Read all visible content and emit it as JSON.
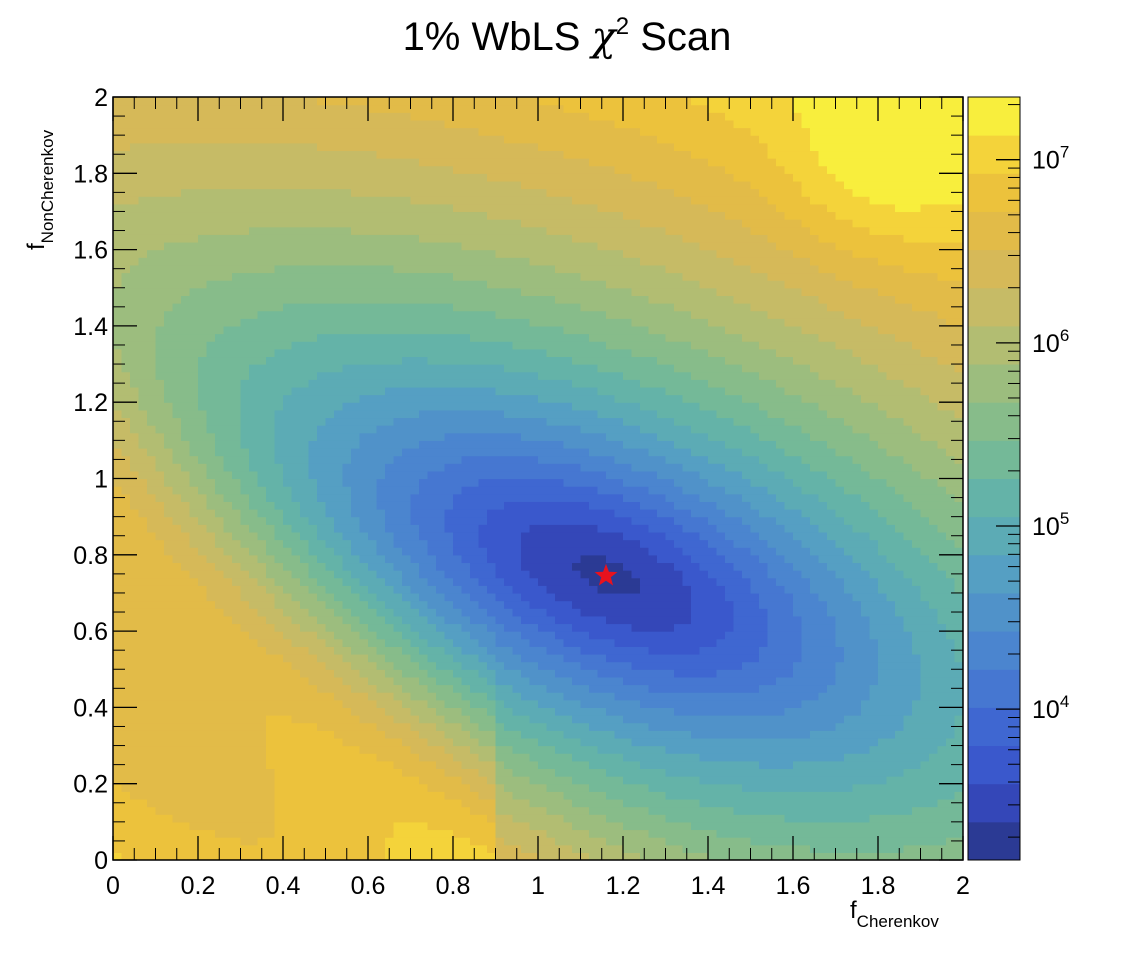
{
  "chart_data": {
    "type": "heatmap",
    "title": {
      "main": "1% WbLS ",
      "symbol": "χ",
      "sup": "2",
      "suffix": " Scan"
    },
    "xlabel": {
      "main": "f",
      "sub": "Cherenkov"
    },
    "ylabel": {
      "main": "f",
      "sub": "NonCherenkov"
    },
    "xlim": [
      0,
      2
    ],
    "ylim": [
      0,
      2
    ],
    "x_ticks": [
      "0",
      "0.2",
      "0.4",
      "0.6",
      "0.8",
      "1",
      "1.2",
      "1.4",
      "1.6",
      "1.8",
      "2"
    ],
    "y_ticks": [
      "0",
      "0.2",
      "0.4",
      "0.6",
      "0.8",
      "1",
      "1.2",
      "1.4",
      "1.6",
      "1.8",
      "2"
    ],
    "z_scale": "log",
    "zlim": [
      1500,
      22000000
    ],
    "colorbar_ticks": [
      {
        "base": "10",
        "exp": "4",
        "value": 10000
      },
      {
        "base": "10",
        "exp": "5",
        "value": 100000
      },
      {
        "base": "10",
        "exp": "6",
        "value": 1000000
      },
      {
        "base": "10",
        "exp": "7",
        "value": 10000000
      }
    ],
    "palette": [
      "#2b3a94",
      "#3447b8",
      "#3a58cc",
      "#3f67d1",
      "#4677d1",
      "#4b85cf",
      "#5092c9",
      "#559fc3",
      "#5cabb5",
      "#64b3a8",
      "#74b998",
      "#87bc8a",
      "#9cbd7e",
      "#b2bd72",
      "#c6bb66",
      "#d6b958",
      "#e2bb48",
      "#ecc23c",
      "#f4d33a",
      "#f8ee3d"
    ],
    "minimum": {
      "x": 1.16,
      "y": 0.745,
      "marker": "star",
      "color": "#e8121e"
    },
    "colors": {
      "frame": "#000000",
      "marker": "#e8121e"
    }
  }
}
